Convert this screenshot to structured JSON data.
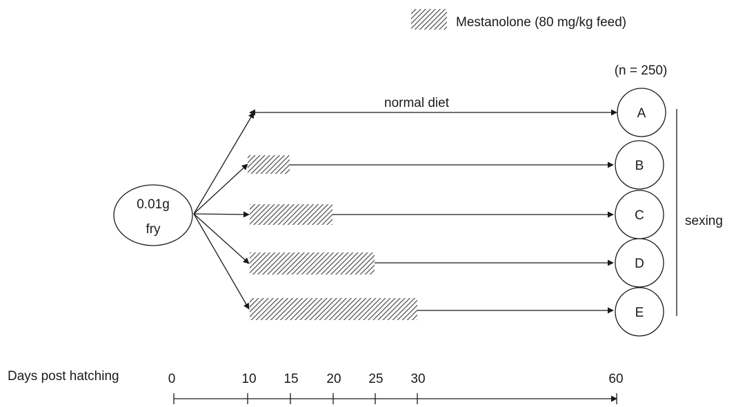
{
  "legend": {
    "label": "Mestanolone (80 mg/kg feed)"
  },
  "start": {
    "line1": "0.01g",
    "line2": "fry"
  },
  "sample_size": "(n = 250)",
  "normal_diet_label": "normal diet",
  "sexing_label": "sexing",
  "groups": [
    {
      "id": "A",
      "treatment_days": null
    },
    {
      "id": "B",
      "treatment_days": [
        10,
        15
      ]
    },
    {
      "id": "C",
      "treatment_days": [
        10,
        20
      ]
    },
    {
      "id": "D",
      "treatment_days": [
        10,
        25
      ]
    },
    {
      "id": "E",
      "treatment_days": [
        10,
        30
      ]
    }
  ],
  "axis": {
    "title": "Days post hatching",
    "ticks": [
      "0",
      "10",
      "15",
      "20",
      "25",
      "30",
      "60"
    ]
  },
  "colors": {
    "ink": "#1a1a1a",
    "hatch": "#555555"
  }
}
